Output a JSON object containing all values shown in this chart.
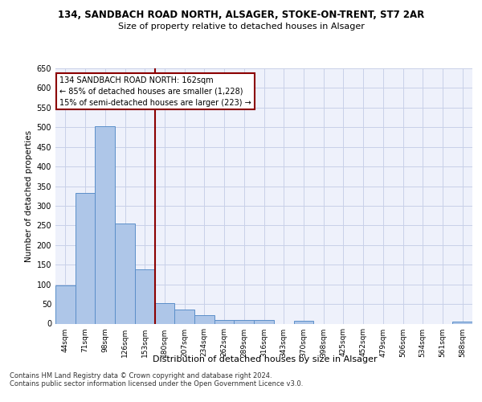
{
  "title1": "134, SANDBACH ROAD NORTH, ALSAGER, STOKE-ON-TRENT, ST7 2AR",
  "title2": "Size of property relative to detached houses in Alsager",
  "xlabel": "Distribution of detached houses by size in Alsager",
  "ylabel": "Number of detached properties",
  "categories": [
    "44sqm",
    "71sqm",
    "98sqm",
    "126sqm",
    "153sqm",
    "180sqm",
    "207sqm",
    "234sqm",
    "262sqm",
    "289sqm",
    "316sqm",
    "343sqm",
    "370sqm",
    "398sqm",
    "425sqm",
    "452sqm",
    "479sqm",
    "506sqm",
    "534sqm",
    "561sqm",
    "588sqm"
  ],
  "values": [
    97,
    333,
    503,
    255,
    138,
    53,
    36,
    21,
    10,
    10,
    10,
    0,
    7,
    0,
    0,
    0,
    0,
    0,
    0,
    0,
    5
  ],
  "bar_color": "#aec6e8",
  "bar_edge_color": "#5b8fc9",
  "vline_color": "#8b0000",
  "annotation_text": "134 SANDBACH ROAD NORTH: 162sqm\n← 85% of detached houses are smaller (1,228)\n15% of semi-detached houses are larger (223) →",
  "annotation_box_color": "white",
  "annotation_box_edge": "#8b0000",
  "ylim": [
    0,
    650
  ],
  "yticks": [
    0,
    50,
    100,
    150,
    200,
    250,
    300,
    350,
    400,
    450,
    500,
    550,
    600,
    650
  ],
  "footer": "Contains HM Land Registry data © Crown copyright and database right 2024.\nContains public sector information licensed under the Open Government Licence v3.0.",
  "background_color": "#eef1fb",
  "grid_color": "#c8d0e8",
  "fig_bg": "#ffffff"
}
